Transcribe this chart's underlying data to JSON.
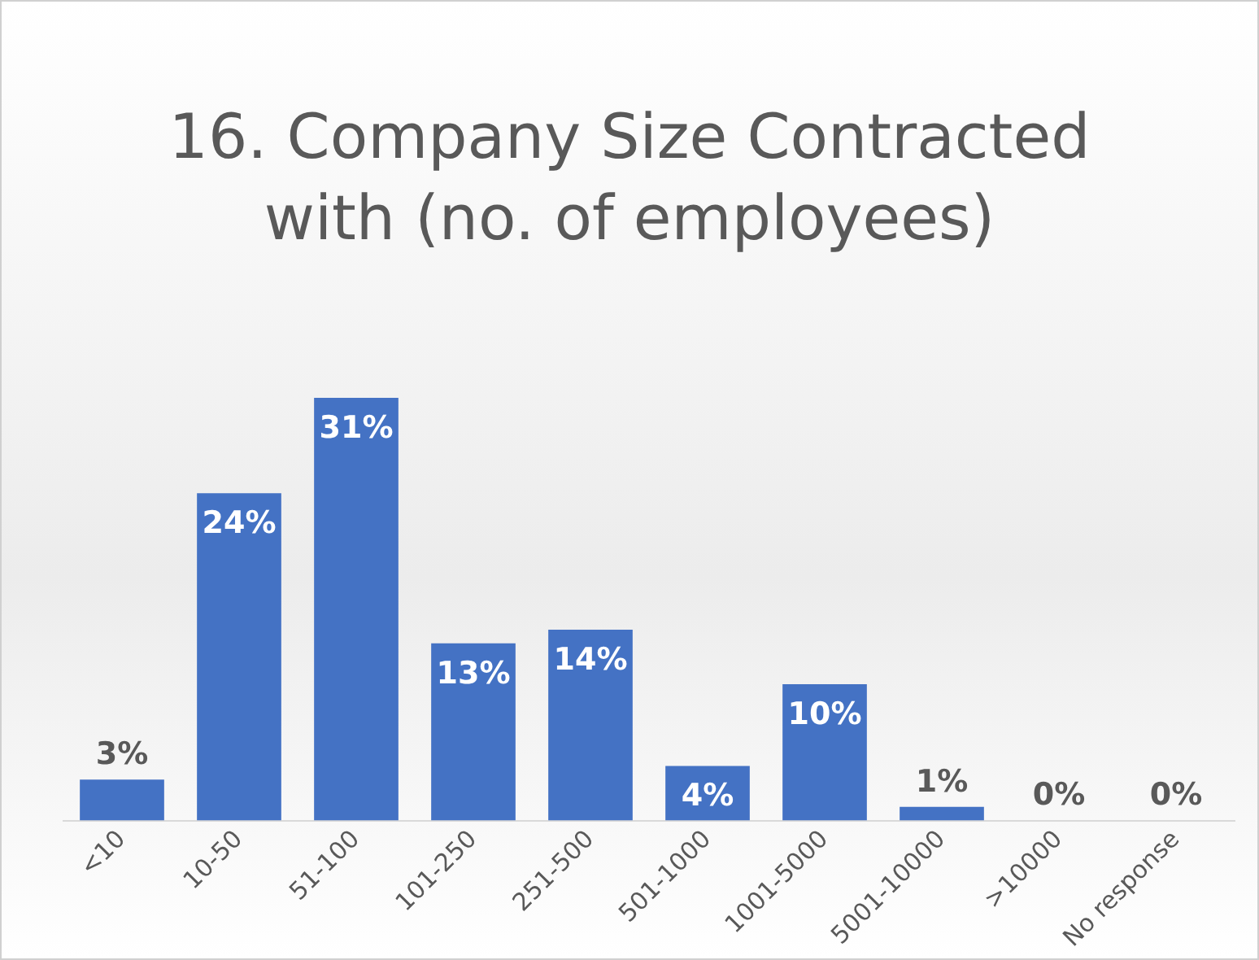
{
  "chart_data": {
    "type": "bar",
    "title": "16. Company Size Contracted with (no. of employees)",
    "categories": [
      "<10",
      "10-50",
      "51-100",
      "101-250",
      "251-500",
      "501-1000",
      "1001-5000",
      "5001-10000",
      ">10000",
      "No response"
    ],
    "values": [
      3,
      24,
      31,
      13,
      14,
      4,
      10,
      1,
      0,
      0
    ],
    "value_labels": [
      "3%",
      "24%",
      "31%",
      "13%",
      "14%",
      "4%",
      "10%",
      "1%",
      "0%",
      "0%"
    ],
    "color": "#4472c4",
    "grid": false,
    "legend": false
  }
}
